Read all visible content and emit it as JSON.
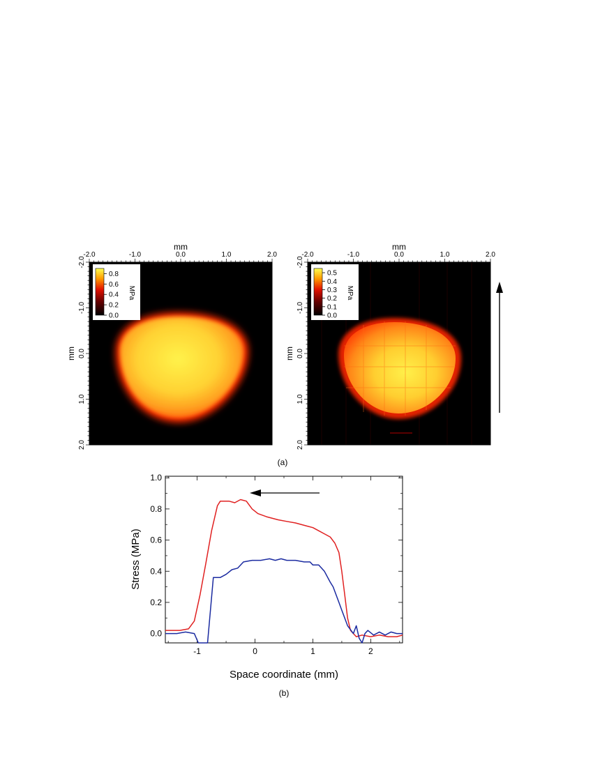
{
  "heatmaps": [
    {
      "x_label": "mm",
      "y_label": "mm",
      "x_ticks": [
        "-2.0",
        "-1.0",
        "0.0",
        "1.0",
        "2.0"
      ],
      "y_ticks": [
        "-2.0",
        "-1.0",
        "0.0",
        "1.0",
        "2.0"
      ],
      "colorbar_label": "MPa",
      "colorbar_ticks": [
        "0.8",
        "0.6",
        "0.4",
        "0.2",
        "0.0"
      ],
      "colorbar_tick_values": [
        0.8,
        0.6,
        0.4,
        0.2,
        0.0
      ],
      "colorbar_max": 0.9
    },
    {
      "x_label": "mm",
      "y_label": "mm",
      "x_ticks": [
        "-2.0",
        "-1.0",
        "0.0",
        "1.0",
        "2.0"
      ],
      "y_ticks": [
        "-2.0",
        "-1.0",
        "0.0",
        "1.0",
        "2.0"
      ],
      "colorbar_label": "MPa",
      "colorbar_ticks": [
        "0.5",
        "0.4",
        "0.3",
        "0.2",
        "0.1",
        "0.0"
      ],
      "colorbar_tick_values": [
        0.5,
        0.4,
        0.3,
        0.2,
        0.1,
        0.0
      ],
      "colorbar_max": 0.55
    }
  ],
  "caption_a": "(a)",
  "caption_b": "(b)",
  "chart_data": {
    "type": "line",
    "xlabel": "Space coordinate (mm)",
    "ylabel": "Stress (MPa)",
    "xlim": [
      -1.55,
      2.55
    ],
    "ylim": [
      -0.06,
      1.01
    ],
    "x_ticks": [
      -1,
      0,
      1,
      2
    ],
    "y_ticks": [
      0.0,
      0.2,
      0.4,
      0.6,
      0.8,
      1.0
    ],
    "y_tick_labels": [
      "0.0",
      "0.2",
      "0.4",
      "0.6",
      "0.8",
      "1.0"
    ],
    "x_tick_labels": [
      "-1",
      "0",
      "1",
      "2"
    ],
    "grid": false,
    "series": [
      {
        "color": "#e02020",
        "points": [
          [
            -1.55,
            0.02
          ],
          [
            -1.3,
            0.02
          ],
          [
            -1.15,
            0.03
          ],
          [
            -1.05,
            0.08
          ],
          [
            -0.95,
            0.25
          ],
          [
            -0.85,
            0.45
          ],
          [
            -0.75,
            0.66
          ],
          [
            -0.65,
            0.82
          ],
          [
            -0.6,
            0.85
          ],
          [
            -0.45,
            0.85
          ],
          [
            -0.35,
            0.84
          ],
          [
            -0.25,
            0.86
          ],
          [
            -0.15,
            0.85
          ],
          [
            -0.05,
            0.8
          ],
          [
            0.05,
            0.77
          ],
          [
            0.2,
            0.75
          ],
          [
            0.4,
            0.73
          ],
          [
            0.55,
            0.72
          ],
          [
            0.7,
            0.71
          ],
          [
            0.9,
            0.69
          ],
          [
            1.0,
            0.68
          ],
          [
            1.1,
            0.66
          ],
          [
            1.2,
            0.64
          ],
          [
            1.3,
            0.62
          ],
          [
            1.38,
            0.58
          ],
          [
            1.45,
            0.52
          ],
          [
            1.5,
            0.4
          ],
          [
            1.55,
            0.25
          ],
          [
            1.6,
            0.1
          ],
          [
            1.65,
            0.02
          ],
          [
            1.75,
            -0.02
          ],
          [
            1.85,
            -0.01
          ],
          [
            2.0,
            -0.02
          ],
          [
            2.15,
            -0.01
          ],
          [
            2.3,
            -0.02
          ],
          [
            2.45,
            -0.02
          ],
          [
            2.55,
            -0.01
          ]
        ]
      },
      {
        "color": "#1a2aa0",
        "points": [
          [
            -1.55,
            0.0
          ],
          [
            -1.35,
            0.0
          ],
          [
            -1.2,
            0.01
          ],
          [
            -1.05,
            0.0
          ],
          [
            -0.98,
            -0.06
          ],
          [
            -0.95,
            -0.06
          ],
          [
            -0.82,
            -0.06
          ],
          [
            -0.72,
            0.36
          ],
          [
            -0.6,
            0.36
          ],
          [
            -0.5,
            0.38
          ],
          [
            -0.4,
            0.41
          ],
          [
            -0.3,
            0.42
          ],
          [
            -0.2,
            0.46
          ],
          [
            -0.05,
            0.47
          ],
          [
            0.1,
            0.47
          ],
          [
            0.25,
            0.48
          ],
          [
            0.35,
            0.47
          ],
          [
            0.45,
            0.48
          ],
          [
            0.55,
            0.47
          ],
          [
            0.7,
            0.47
          ],
          [
            0.85,
            0.46
          ],
          [
            0.95,
            0.46
          ],
          [
            1.0,
            0.44
          ],
          [
            1.1,
            0.44
          ],
          [
            1.2,
            0.4
          ],
          [
            1.3,
            0.33
          ],
          [
            1.35,
            0.3
          ],
          [
            1.45,
            0.2
          ],
          [
            1.5,
            0.15
          ],
          [
            1.55,
            0.1
          ],
          [
            1.6,
            0.05
          ],
          [
            1.7,
            0.0
          ],
          [
            1.75,
            0.05
          ],
          [
            1.8,
            -0.03
          ],
          [
            1.85,
            -0.06
          ],
          [
            1.9,
            0.0
          ],
          [
            1.95,
            0.02
          ],
          [
            2.05,
            -0.01
          ],
          [
            2.15,
            0.01
          ],
          [
            2.25,
            -0.01
          ],
          [
            2.35,
            0.01
          ],
          [
            2.45,
            0.0
          ],
          [
            2.55,
            0.0
          ]
        ]
      }
    ]
  }
}
